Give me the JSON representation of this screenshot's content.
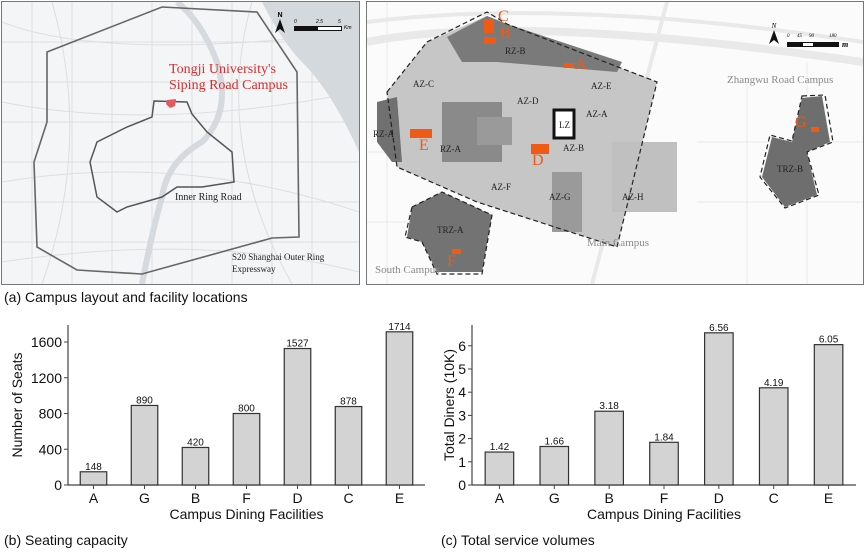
{
  "panel_a": {
    "caption_letter": "(a)",
    "caption_text": "Campus layout and facility locations",
    "city_map": {
      "campus_label_line1": "Tongji University's",
      "campus_label_line2": "Siping Road Campus",
      "inner_ring_label": "Inner Ring Road",
      "outer_ring_label_line1": "S20 Shanghai Outer Ring",
      "outer_ring_label_line2": "Expressway",
      "north_label": "N",
      "scale_ticks": [
        "0",
        "2.5",
        "5"
      ],
      "scale_unit": "Km"
    },
    "campus_map": {
      "north_label": "N",
      "scale_ticks": [
        "0",
        "45",
        "90",
        "180"
      ],
      "scale_unit": "m",
      "campus_labels": [
        "Main Campus",
        "South Campus",
        "Zhangwu Road Campus"
      ],
      "zones": [
        "RZ-B",
        "AZ-C",
        "AZ-D",
        "AZ-E",
        "AZ-A",
        "LZ",
        "RZ-A",
        "RZ-A",
        "AZ-B",
        "AZ-F",
        "AZ-G",
        "AZ-H",
        "TRZ-A",
        "TRZ-B"
      ],
      "facilities": [
        "A",
        "B",
        "C",
        "D",
        "E",
        "F",
        "G"
      ],
      "colors": {
        "facility": "#f05a14",
        "residential_zone": "#6e6e6e",
        "academic_zone": "#bdbdbd",
        "campus_label": "#8a8a8a",
        "city_campus_label": "#d92b2b"
      }
    }
  },
  "chart_data": [
    {
      "type": "bar",
      "caption_letter": "(b)",
      "caption_text": "Seating capacity",
      "categories": [
        "A",
        "G",
        "B",
        "F",
        "D",
        "C",
        "E"
      ],
      "values": [
        148,
        890,
        420,
        800,
        1527,
        878,
        1714
      ],
      "value_labels": [
        "148",
        "890",
        "420",
        "800",
        "1527",
        "878",
        "1714"
      ],
      "xlabel": "Campus Dining Facilities",
      "ylabel": "Number of Seats",
      "ylim": [
        0,
        1800
      ],
      "yticks": [
        "0",
        "400",
        "800",
        "1200",
        "1600"
      ],
      "grid": false,
      "bar_color": "#d3d3d3"
    },
    {
      "type": "bar",
      "caption_letter": "(c)",
      "caption_text": "Total service volumes",
      "categories": [
        "A",
        "G",
        "B",
        "F",
        "D",
        "C",
        "E"
      ],
      "values": [
        1.42,
        1.66,
        3.18,
        1.84,
        6.56,
        4.19,
        6.05
      ],
      "value_labels": [
        "1.42",
        "1.66",
        "3.18",
        "1.84",
        "6.56",
        "4.19",
        "6.05"
      ],
      "xlabel": "Campus Dining Facilities",
      "ylabel": "Total Diners (10K)",
      "ylim": [
        0,
        6.9
      ],
      "yticks": [
        "0",
        "1",
        "2",
        "3",
        "4",
        "5",
        "6"
      ],
      "grid": false,
      "bar_color": "#d3d3d3"
    }
  ]
}
